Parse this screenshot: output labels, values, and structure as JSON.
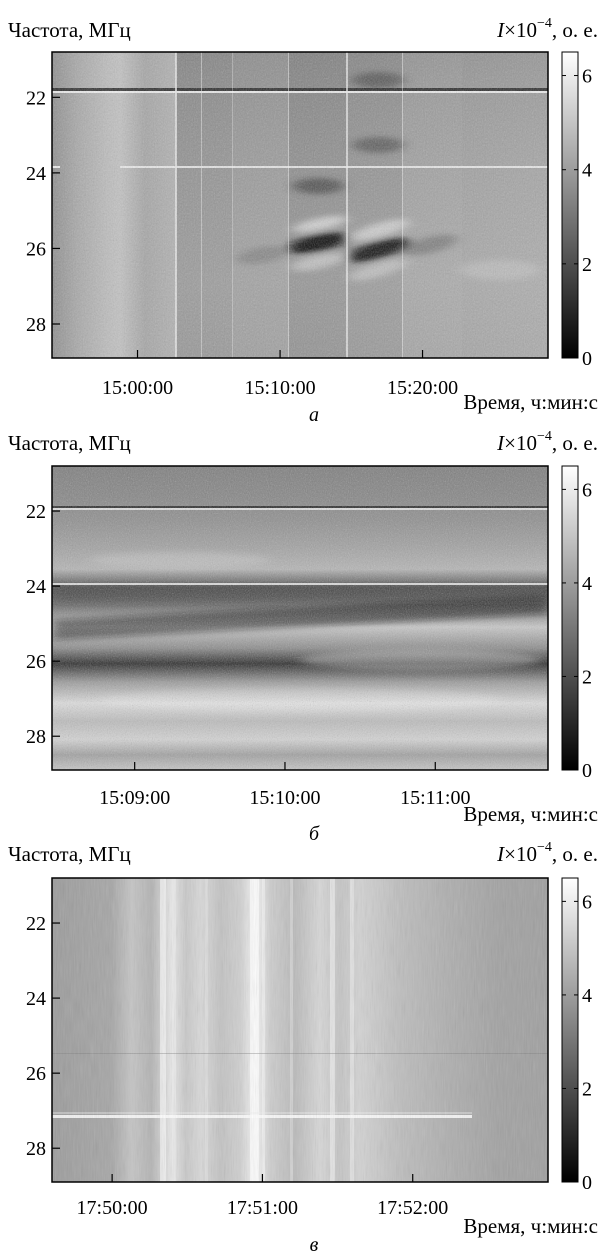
{
  "labels": {
    "ylabel": "Частота, МГц",
    "cbar_label_var": "I",
    "cbar_label_mul": "×10",
    "cbar_label_exp": "−4",
    "cbar_label_unit": ", о. е.",
    "xlabel": "Время, ч:мин:с"
  },
  "chart_data": [
    {
      "type": "heatmap",
      "panel": "a",
      "panel_label": "а",
      "yticks": [
        22,
        24,
        26,
        28
      ],
      "ylim": [
        20.8,
        28.9
      ],
      "xticks": [
        "15:00:00",
        "15:10:00",
        "15:20:00"
      ],
      "xlim_minutes": [
        14.9,
        15.48
      ],
      "xticks_minutes": [
        15.0,
        15.1667,
        15.3333
      ],
      "colorbar": {
        "ticks": [
          0,
          2,
          4,
          6
        ],
        "range": [
          0,
          6.5
        ],
        "colormap": "gray"
      }
    },
    {
      "type": "heatmap",
      "panel": "b",
      "panel_label": "б",
      "yticks": [
        22,
        24,
        26,
        28
      ],
      "ylim": [
        20.8,
        28.9
      ],
      "xticks": [
        "15:09:00",
        "15:10:00",
        "15:11:00"
      ],
      "xlim_minutes": [
        8.45,
        11.75
      ],
      "xticks_minutes": [
        9,
        10,
        11
      ],
      "colorbar": {
        "ticks": [
          0,
          2,
          4,
          6
        ],
        "range": [
          0,
          6.5
        ],
        "colormap": "gray"
      }
    },
    {
      "type": "heatmap",
      "panel": "c",
      "panel_label": "в",
      "yticks": [
        22,
        24,
        26,
        28
      ],
      "ylim": [
        20.8,
        28.9
      ],
      "xticks": [
        "17:50:00",
        "17:51:00",
        "17:52:00"
      ],
      "xlim_minutes": [
        49.6,
        52.9
      ],
      "xticks_minutes": [
        50,
        51,
        52
      ],
      "colorbar": {
        "ticks": [
          0,
          2,
          4,
          6
        ],
        "range": [
          0,
          6.5
        ],
        "colormap": "gray"
      }
    }
  ]
}
